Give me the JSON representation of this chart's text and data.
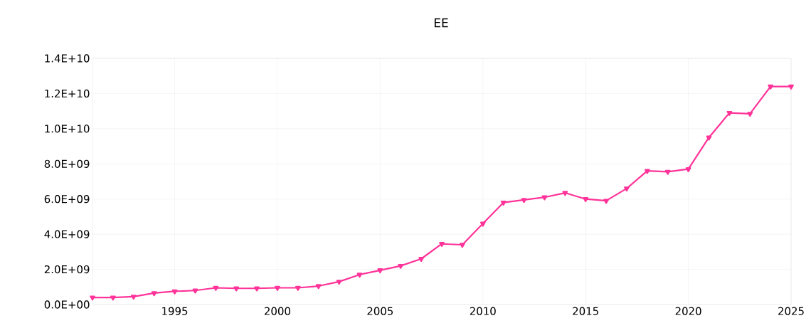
{
  "chart_data": {
    "type": "line",
    "title": "EE",
    "x": [
      1991,
      1992,
      1993,
      1994,
      1995,
      1996,
      1997,
      1998,
      1999,
      2000,
      2001,
      2002,
      2003,
      2004,
      2005,
      2006,
      2007,
      2008,
      2009,
      2010,
      2011,
      2012,
      2013,
      2014,
      2015,
      2016,
      2017,
      2018,
      2019,
      2020,
      2021,
      2022,
      2023,
      2024,
      2025
    ],
    "series": [
      {
        "color": "#ff3399",
        "values": [
          400000000.0,
          400000000.0,
          450000000.0,
          650000000.0,
          750000000.0,
          800000000.0,
          950000000.0,
          920000000.0,
          920000000.0,
          950000000.0,
          950000000.0,
          1050000000.0,
          1300000000.0,
          1700000000.0,
          1950000000.0,
          2200000000.0,
          2600000000.0,
          3450000000.0,
          3400000000.0,
          4600000000.0,
          5800000000.0,
          5950000000.0,
          6100000000.0,
          6350000000.0,
          6000000000.0,
          5900000000.0,
          6600000000.0,
          7600000000.0,
          7550000000.0,
          7700000000.0,
          9500000000.0,
          10900000000.0,
          10850000000.0,
          12400000000.0,
          12400000000.0
        ]
      }
    ],
    "xlim": [
      1991,
      2025
    ],
    "xticks": [
      1995,
      2000,
      2005,
      2010,
      2015,
      2020,
      2025
    ],
    "ylim": [
      0,
      14000000000.0
    ],
    "yticks": [
      {
        "value": 0,
        "label": "0.0E+00"
      },
      {
        "value": 2000000000.0,
        "label": "2.0E+09"
      },
      {
        "value": 4000000000.0,
        "label": "4.0E+09"
      },
      {
        "value": 6000000000.0,
        "label": "6.0E+09"
      },
      {
        "value": 8000000000.0,
        "label": "8.0E+09"
      },
      {
        "value": 10000000000.0,
        "label": "1.0E+10"
      },
      {
        "value": 12000000000.0,
        "label": "1.2E+10"
      },
      {
        "value": 14000000000.0,
        "label": "1.4E+10"
      }
    ],
    "grid": true,
    "marker": "triangle",
    "line_style": "solid"
  }
}
